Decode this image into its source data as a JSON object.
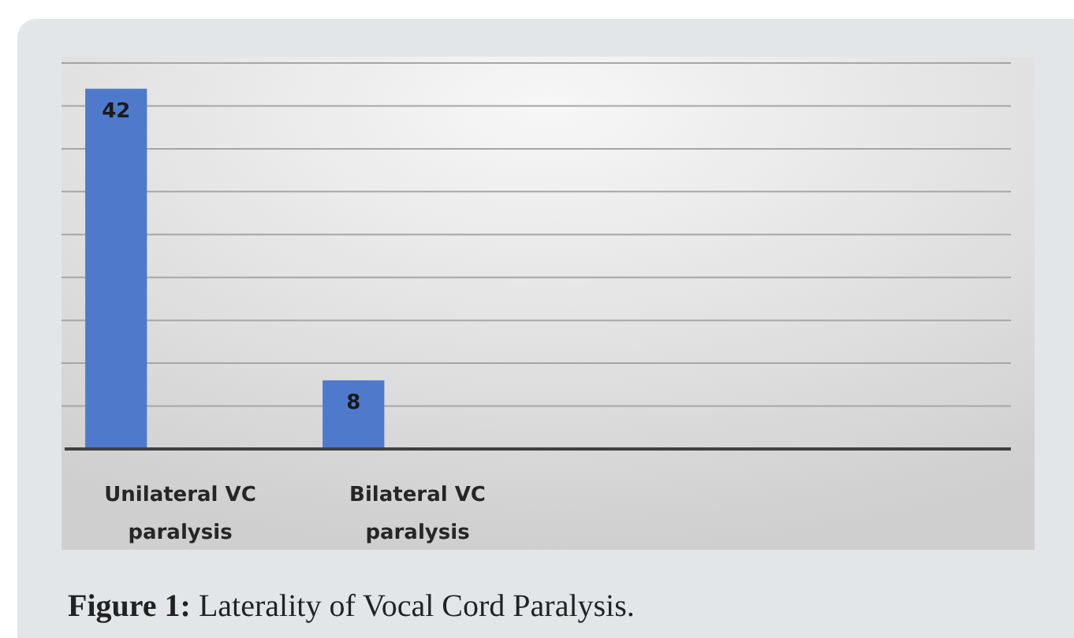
{
  "chart_data": {
    "type": "bar",
    "categories": [
      "Unilateral VC paralysis",
      "Bilateral VC paralysis"
    ],
    "values": [
      42,
      8
    ],
    "color": "#4f7acb",
    "data_labels": true,
    "ylim": [
      0,
      45
    ],
    "yticks": [
      {
        "value": 0,
        "label": null
      },
      {
        "value": 5,
        "label": null
      },
      {
        "value": 10,
        "label": null
      },
      {
        "value": 15,
        "label": null
      },
      {
        "value": 20,
        "label": null
      },
      {
        "value": 25,
        "label": null
      },
      {
        "value": 30,
        "label": null
      },
      {
        "value": 35,
        "label": null
      },
      {
        "value": 40,
        "label": null
      },
      {
        "value": 45,
        "label": null
      }
    ],
    "grid": "y",
    "tick_labels": "x",
    "annotations": [
      "Figure 1: Laterality of Vocal Cord Paralysis."
    ]
  }
}
